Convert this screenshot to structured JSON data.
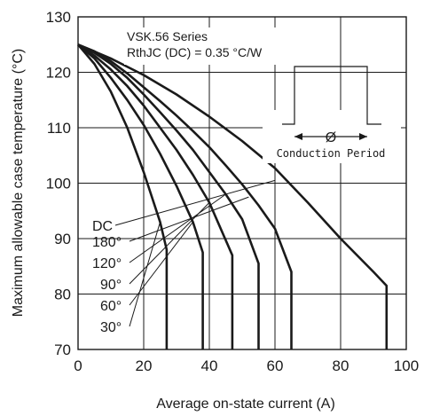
{
  "chart_data": {
    "type": "line",
    "title": "",
    "xlabel": "Average on-state current (A)",
    "ylabel": "Maximum allowable case temperature (°C)",
    "xlim": [
      0,
      100
    ],
    "ylim": [
      70,
      130
    ],
    "xticks": [
      "0",
      "20",
      "40",
      "60",
      "80",
      "100"
    ],
    "yticks": [
      "70",
      "80",
      "90",
      "100",
      "110",
      "120",
      "130"
    ],
    "grid": true,
    "annotations": {
      "series_name": "VSK.56 Series",
      "rth": "RthJC (DC) = 0.35 °C/W",
      "inset_symbol": "Ø",
      "inset_label": "Conduction Period"
    },
    "series": [
      {
        "name": "30°",
        "x": [
          0,
          5,
          10,
          15,
          20,
          25,
          27,
          27
        ],
        "y": [
          125,
          121.5,
          116.5,
          110,
          102,
          93,
          88,
          70
        ]
      },
      {
        "name": "60°",
        "x": [
          0,
          5,
          10,
          15,
          20,
          25,
          30,
          35,
          38,
          38
        ],
        "y": [
          125,
          122.5,
          119,
          115,
          110.5,
          105.3,
          99.5,
          93,
          87.5,
          70
        ]
      },
      {
        "name": "90°",
        "x": [
          0,
          5,
          10,
          15,
          20,
          25,
          30,
          35,
          40,
          47,
          47
        ],
        "y": [
          125,
          123,
          120.5,
          117.5,
          114,
          110,
          106,
          101.5,
          96.5,
          87,
          70
        ]
      },
      {
        "name": "120°",
        "x": [
          0,
          5,
          10,
          15,
          20,
          25,
          30,
          35,
          40,
          45,
          50,
          55,
          55
        ],
        "y": [
          125,
          123.5,
          121.5,
          119,
          116,
          112.8,
          109.5,
          106,
          102,
          98,
          93.5,
          85.5,
          70
        ]
      },
      {
        "name": "180°",
        "x": [
          0,
          5,
          10,
          15,
          20,
          25,
          30,
          35,
          40,
          45,
          50,
          55,
          60,
          65,
          65
        ],
        "y": [
          125,
          123.8,
          122,
          119.8,
          117.3,
          114.8,
          112.2,
          109.4,
          106.5,
          103.2,
          99.8,
          96,
          91.8,
          84,
          70
        ]
      },
      {
        "name": "DC",
        "x": [
          0,
          10,
          20,
          30,
          40,
          50,
          60,
          70,
          80,
          90,
          94,
          94
        ],
        "y": [
          125,
          122.5,
          119.5,
          116,
          112,
          107.6,
          102.7,
          96.5,
          90,
          84,
          81.5,
          70
        ]
      }
    ],
    "curve_labels": [
      "DC",
      "180°",
      "120°",
      "90°",
      "60°",
      "30°"
    ]
  }
}
